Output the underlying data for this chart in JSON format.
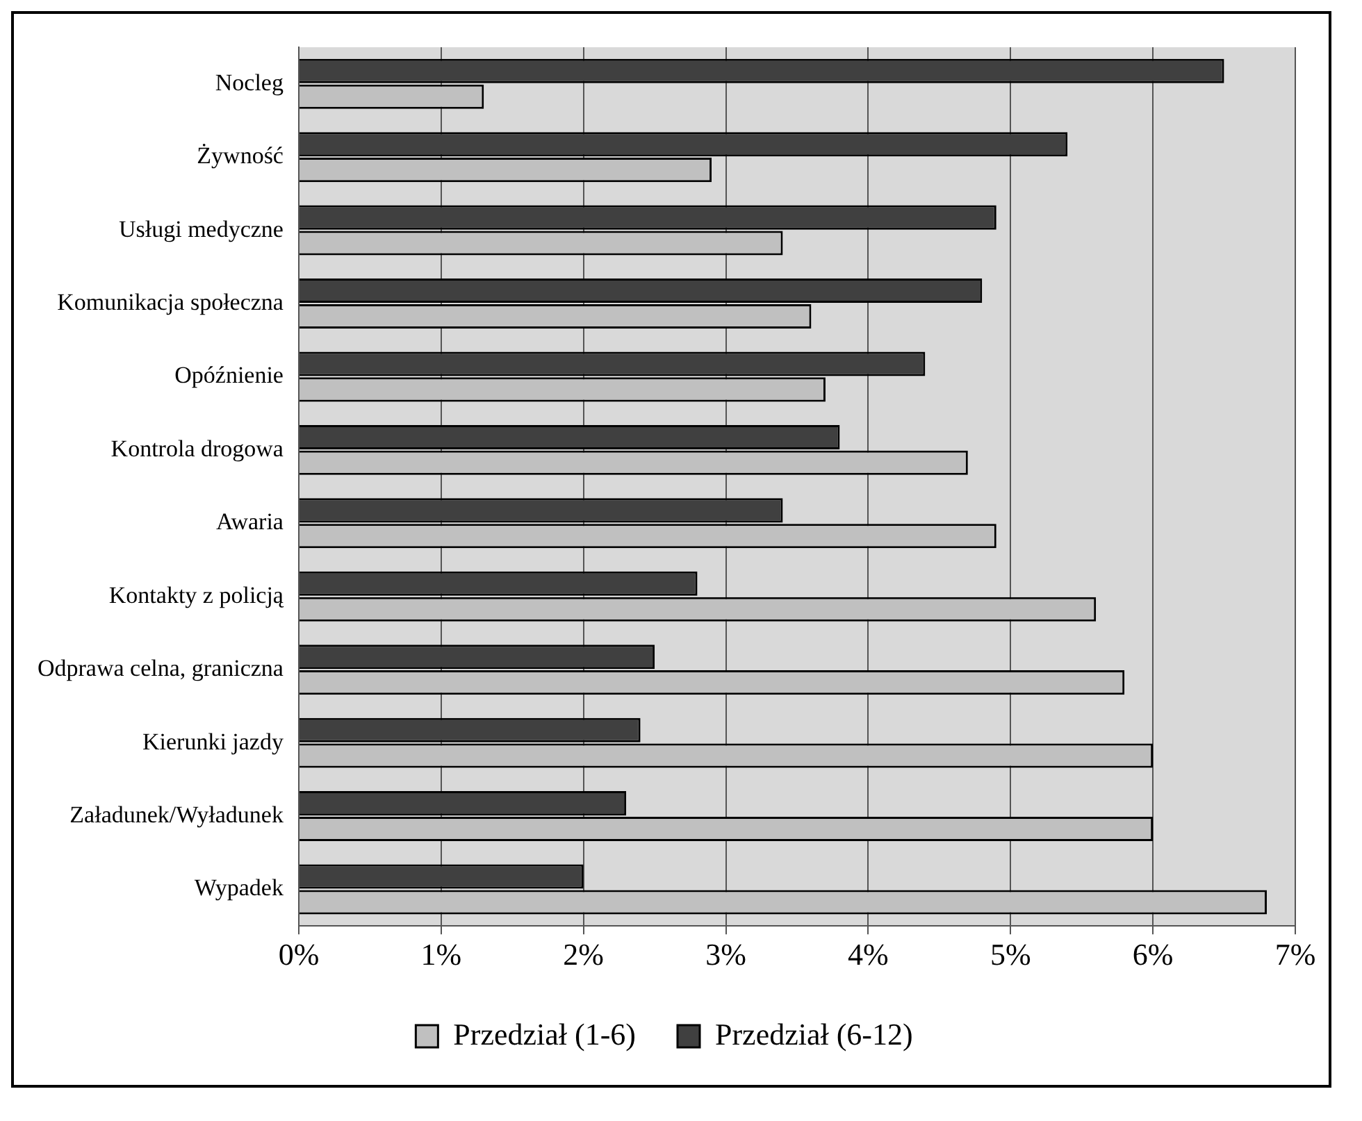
{
  "chart_data": {
    "type": "bar",
    "orientation": "horizontal",
    "categories": [
      "Nocleg",
      "Żywność",
      "Usługi medyczne",
      "Komunikacja społeczna",
      "Opóźnienie",
      "Kontrola drogowa",
      "Awaria",
      "Kontakty z policją",
      "Odprawa celna, graniczna",
      "Kierunki jazdy",
      "Załadunek/Wyładunek",
      "Wypadek"
    ],
    "series": [
      {
        "name": "Przedział (1-6)",
        "color": "#c0c0c0",
        "values": [
          1.3,
          2.9,
          3.4,
          3.6,
          3.7,
          4.7,
          4.9,
          5.6,
          5.8,
          6.0,
          6.0,
          6.8
        ]
      },
      {
        "name": "Przedział (6-12)",
        "color": "#404040",
        "values": [
          6.5,
          5.4,
          4.9,
          4.8,
          4.4,
          3.8,
          3.4,
          2.8,
          2.5,
          2.4,
          2.3,
          2.0
        ]
      }
    ],
    "xlim": [
      0,
      7
    ],
    "xticks": [
      {
        "value": 0,
        "label": "0%"
      },
      {
        "value": 1,
        "label": "1%"
      },
      {
        "value": 2,
        "label": "2%"
      },
      {
        "value": 3,
        "label": "3%"
      },
      {
        "value": 4,
        "label": "4%"
      },
      {
        "value": 5,
        "label": "5%"
      },
      {
        "value": 6,
        "label": "6%"
      },
      {
        "value": 7,
        "label": "7%"
      }
    ],
    "grid": "x",
    "legend": "bottom"
  }
}
